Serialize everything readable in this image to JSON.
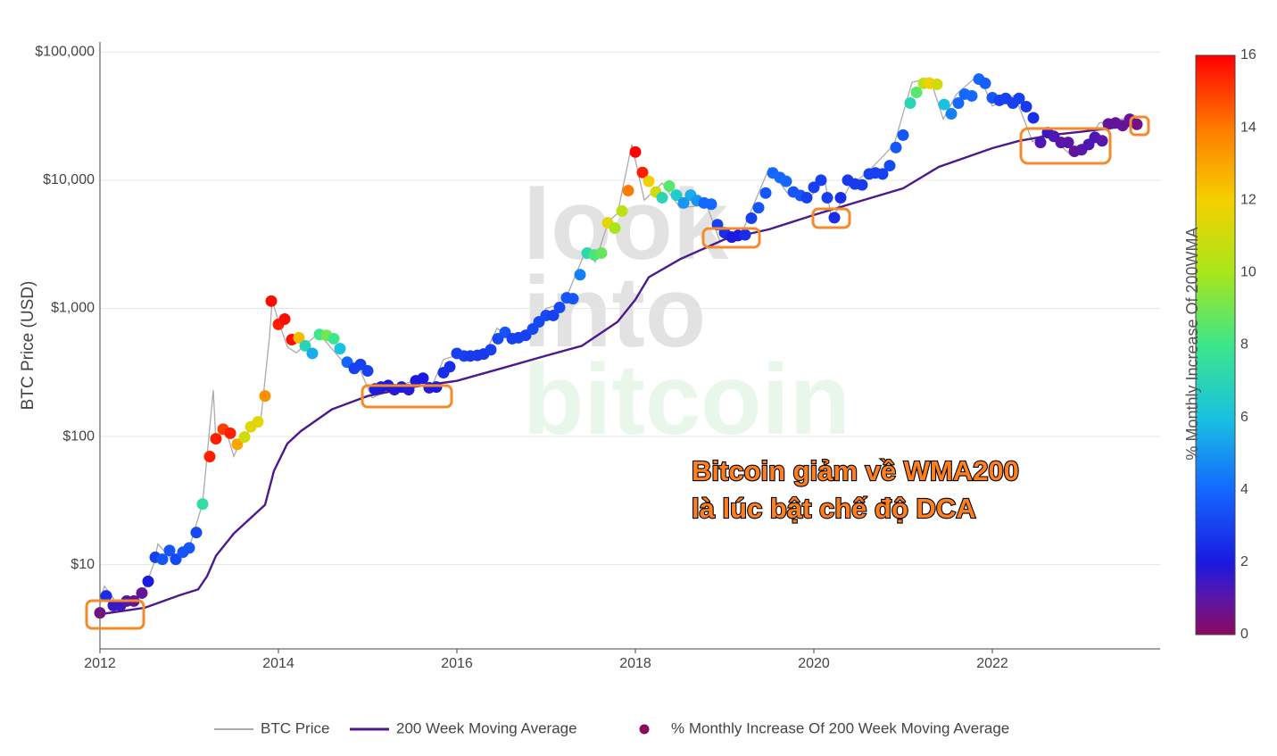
{
  "chart_data": {
    "type": "line",
    "y_title": "BTC Price (USD)",
    "watermark": [
      "look",
      "into",
      "bitcoin"
    ],
    "annotation": [
      "Bitcoin giảm về WMA200",
      "là lúc bật chế độ DCA"
    ],
    "xlim": [
      2012,
      2023.88
    ],
    "xticks": [
      2012,
      2014,
      2016,
      2018,
      2020,
      2022
    ],
    "ylim": [
      2.2,
      120000
    ],
    "log_y": true,
    "grid": true,
    "yticks": [
      {
        "value": 10,
        "label": "$10"
      },
      {
        "value": 100,
        "label": "$100"
      },
      {
        "value": 1000,
        "label": "$1,000"
      },
      {
        "value": 10000,
        "label": "$10,000"
      },
      {
        "value": 100000,
        "label": "$100,000"
      }
    ],
    "colorbar": {
      "title": "% Monthly Increase Of 200WMA",
      "clim": [
        0,
        16
      ],
      "cticks": [
        0,
        2,
        4,
        6,
        8,
        10,
        12,
        14,
        16
      ],
      "colorscale": [
        {
          "value": 0,
          "color": "#8b0a5e"
        },
        {
          "value": 1,
          "color": "#5a16a8"
        },
        {
          "value": 2,
          "color": "#1a1ae0"
        },
        {
          "value": 4,
          "color": "#1468ff"
        },
        {
          "value": 6,
          "color": "#19c2e0"
        },
        {
          "value": 8,
          "color": "#3ce68a"
        },
        {
          "value": 10,
          "color": "#a8e61a"
        },
        {
          "value": 12,
          "color": "#f5d000"
        },
        {
          "value": 14,
          "color": "#ff7a00"
        },
        {
          "value": 16,
          "color": "#ff0000"
        }
      ]
    },
    "series": [
      {
        "name": "BTC Price",
        "color": "#aaaaaa",
        "x": [
          2012.0,
          2012.05,
          2012.2,
          2012.4,
          2012.5,
          2012.6,
          2012.65,
          2012.8,
          2013.0,
          2013.15,
          2013.27,
          2013.3,
          2013.4,
          2013.5,
          2013.6,
          2013.8,
          2013.9,
          2013.93,
          2014.0,
          2014.1,
          2014.2,
          2014.45,
          2014.7,
          2014.9,
          2015.05,
          2015.3,
          2015.5,
          2015.7,
          2015.85,
          2016.0,
          2016.3,
          2016.45,
          2016.6,
          2016.9,
          2017.0,
          2017.2,
          2017.45,
          2017.55,
          2017.7,
          2017.8,
          2017.96,
          2018.1,
          2018.3,
          2018.5,
          2018.8,
          2018.95,
          2019.2,
          2019.5,
          2019.7,
          2019.95,
          2020.12,
          2020.2,
          2020.4,
          2020.6,
          2020.9,
          2021.1,
          2021.3,
          2021.45,
          2021.6,
          2021.85,
          2022.0,
          2022.25,
          2022.45,
          2022.6,
          2022.87,
          2023.0,
          2023.2,
          2023.5,
          2023.62
        ],
        "values": [
          5,
          6.8,
          4.9,
          5.2,
          6.5,
          10,
          14.5,
          11,
          13.5,
          30,
          230,
          90,
          120,
          70,
          100,
          130,
          600,
          1150,
          800,
          500,
          450,
          640,
          400,
          350,
          200,
          240,
          270,
          230,
          400,
          430,
          420,
          700,
          580,
          750,
          1000,
          1100,
          2900,
          2300,
          4800,
          5500,
          19000,
          7000,
          9500,
          6100,
          6400,
          3300,
          4000,
          12500,
          8000,
          7200,
          10300,
          4900,
          9000,
          11500,
          19000,
          58000,
          63000,
          30000,
          47000,
          67000,
          38000,
          46000,
          20000,
          23500,
          16000,
          17000,
          28000,
          30500,
          26000
        ]
      },
      {
        "name": "200 Week Moving Average",
        "color": "#4b1a8c",
        "x": [
          2012.0,
          2012.5,
          2012.9,
          2013.1,
          2013.2,
          2013.3,
          2013.5,
          2013.85,
          2013.95,
          2014.1,
          2014.25,
          2014.6,
          2015.0,
          2015.5,
          2016.0,
          2016.5,
          2017.0,
          2017.4,
          2017.8,
          2018.0,
          2018.15,
          2018.5,
          2019.0,
          2019.5,
          2020.0,
          2020.5,
          2021.0,
          2021.4,
          2022.0,
          2022.3,
          2022.7,
          2023.0,
          2023.6
        ],
        "values": [
          4.1,
          4.6,
          5.8,
          6.4,
          8.1,
          11.7,
          17.5,
          29.3,
          54,
          88,
          110,
          163,
          207,
          243,
          272,
          340,
          427,
          510,
          785,
          1170,
          1750,
          2420,
          3460,
          4140,
          5350,
          6810,
          8640,
          12700,
          17800,
          20300,
          22700,
          23900,
          26900
        ]
      },
      {
        "name": "% Monthly Increase Of 200 Week Moving Average",
        "type": "scatter",
        "x": [
          2012.0,
          2012.07,
          2012.15,
          2012.23,
          2012.3,
          2012.38,
          2012.47,
          2012.54,
          2012.62,
          2012.7,
          2012.78,
          2012.85,
          2012.93,
          2013.0,
          2013.08,
          2013.15,
          2013.23,
          2013.3,
          2013.38,
          2013.46,
          2013.54,
          2013.62,
          2013.69,
          2013.77,
          2013.85,
          2013.92,
          2014.0,
          2014.07,
          2014.15,
          2014.23,
          2014.3,
          2014.38,
          2014.46,
          2014.54,
          2014.62,
          2014.69,
          2014.77,
          2014.85,
          2014.92,
          2015.0,
          2015.08,
          2015.15,
          2015.23,
          2015.3,
          2015.38,
          2015.46,
          2015.54,
          2015.62,
          2015.69,
          2015.77,
          2015.85,
          2015.92,
          2016.0,
          2016.08,
          2016.15,
          2016.23,
          2016.3,
          2016.38,
          2016.46,
          2016.54,
          2016.62,
          2016.69,
          2016.77,
          2016.85,
          2016.92,
          2017.0,
          2017.08,
          2017.15,
          2017.23,
          2017.3,
          2017.38,
          2017.46,
          2017.54,
          2017.62,
          2017.69,
          2017.77,
          2017.85,
          2017.92,
          2018.0,
          2018.08,
          2018.15,
          2018.23,
          2018.3,
          2018.38,
          2018.46,
          2018.54,
          2018.62,
          2018.69,
          2018.77,
          2018.85,
          2018.92,
          2019.0,
          2019.08,
          2019.15,
          2019.23,
          2019.3,
          2019.38,
          2019.46,
          2019.54,
          2019.62,
          2019.69,
          2019.77,
          2019.85,
          2019.92,
          2020.0,
          2020.08,
          2020.15,
          2020.23,
          2020.3,
          2020.38,
          2020.46,
          2020.54,
          2020.62,
          2020.69,
          2020.77,
          2020.85,
          2020.92,
          2021.0,
          2021.08,
          2021.15,
          2021.23,
          2021.3,
          2021.38,
          2021.46,
          2021.54,
          2021.62,
          2021.69,
          2021.77,
          2021.85,
          2021.92,
          2022.0,
          2022.08,
          2022.15,
          2022.23,
          2022.3,
          2022.38,
          2022.46,
          2022.54,
          2022.62,
          2022.69,
          2022.77,
          2022.85,
          2022.92,
          2023.0,
          2023.08,
          2023.15,
          2023.23,
          2023.3,
          2023.38,
          2023.46,
          2023.54,
          2023.62
        ],
        "values": [
          4.2,
          5.7,
          4.8,
          4.8,
          5.2,
          5.2,
          6.0,
          7.4,
          11.4,
          11,
          12.9,
          11,
          12.5,
          13.5,
          17.8,
          29.7,
          69.7,
          96,
          114,
          106,
          87,
          99,
          119,
          130,
          207,
          1140,
          750,
          825,
          570,
          590,
          510,
          445,
          625,
          615,
          580,
          485,
          380,
          340,
          365,
          325,
          235,
          243,
          250,
          232,
          243,
          232,
          272,
          285,
          240,
          243,
          315,
          350,
          445,
          425,
          425,
          430,
          440,
          475,
          580,
          650,
          580,
          590,
          615,
          690,
          785,
          880,
          880,
          1015,
          1210,
          1190,
          1830,
          2700,
          2610,
          2700,
          4650,
          4230,
          5750,
          8300,
          16600,
          11500,
          9800,
          8100,
          7300,
          9000,
          7650,
          6650,
          7650,
          6950,
          6650,
          6500,
          4500,
          3900,
          3600,
          3700,
          3750,
          5050,
          6100,
          7950,
          11400,
          10500,
          9800,
          8100,
          7600,
          7300,
          8800,
          10000,
          7300,
          5100,
          7300,
          10000,
          9350,
          9200,
          11200,
          11400,
          11200,
          13000,
          18000,
          22500,
          40000,
          48500,
          57000,
          57000,
          56000,
          39000,
          33000,
          40000,
          47000,
          45500,
          61500,
          57000,
          44000,
          42000,
          43500,
          40000,
          43500,
          37500,
          30700,
          19700,
          23500,
          22000,
          19700,
          19700,
          16800,
          17300,
          19000,
          21600,
          20300,
          27500,
          28000,
          26700,
          29900,
          27300
        ],
        "color_values": [
          0.5,
          2.5,
          1.5,
          1.5,
          1.2,
          0.8,
          0.8,
          2,
          3,
          3.5,
          3.5,
          3.2,
          3.5,
          3.5,
          3.2,
          7.5,
          15.5,
          15.5,
          15,
          15.5,
          13,
          11,
          11.5,
          11.5,
          13.5,
          15.8,
          15.5,
          15.8,
          15.8,
          12.5,
          7,
          5.5,
          8,
          9,
          8,
          6,
          4,
          3,
          3,
          3,
          2,
          2,
          2,
          1.8,
          2,
          1.8,
          2,
          2,
          1.8,
          2,
          2.5,
          2.5,
          3,
          3,
          2.8,
          2.8,
          2.8,
          3,
          3.2,
          3.5,
          3,
          3,
          3,
          3.2,
          3.2,
          3.2,
          3,
          3.2,
          3.5,
          3.5,
          4.5,
          7.2,
          8.2,
          8.8,
          11.5,
          10,
          10.5,
          14,
          16,
          15.5,
          12,
          11,
          7,
          8.5,
          6.5,
          5,
          5.5,
          5,
          4,
          4,
          3,
          2.5,
          2,
          2,
          2.5,
          3,
          3.5,
          3.5,
          4,
          4,
          4,
          3.5,
          3.5,
          3,
          3,
          3,
          3,
          2.5,
          2.5,
          2.8,
          2.8,
          2.8,
          3,
          3,
          3,
          3.2,
          3.5,
          3.5,
          7,
          8.5,
          10.5,
          12,
          11,
          6,
          4.5,
          4,
          4,
          4,
          4,
          3.8,
          3.5,
          3,
          3,
          3,
          3,
          2.8,
          2.5,
          1.2,
          1.5,
          1.2,
          1,
          1,
          0.8,
          1,
          1.2,
          1.2,
          1,
          0.8,
          0.8,
          0.8,
          0.8,
          0.5
        ]
      }
    ]
  }
}
